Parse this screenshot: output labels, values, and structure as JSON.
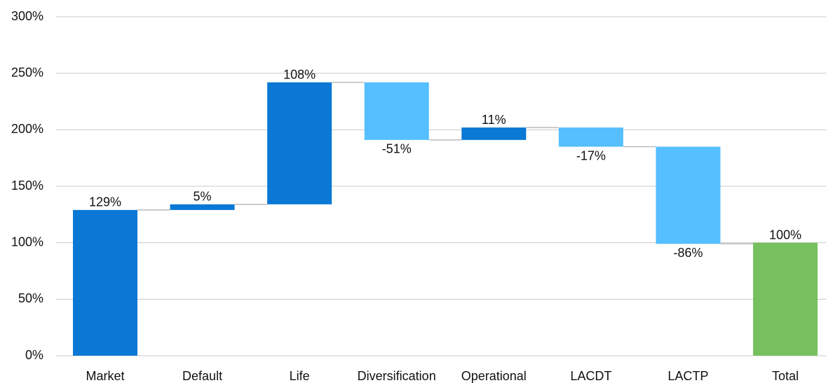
{
  "chart_data": {
    "type": "waterfall",
    "categories": [
      "Market",
      "Default",
      "Life",
      "Diversification",
      "Operational",
      "LACDT",
      "LACTP",
      "Total"
    ],
    "values": [
      129,
      5,
      108,
      -51,
      11,
      -17,
      -86,
      100
    ],
    "value_labels": [
      "129%",
      "5%",
      "108%",
      "-51%",
      "11%",
      "-17%",
      "-86%",
      "100%"
    ],
    "increase_color": "#0a78d4",
    "decrease_color": "#55bfff",
    "total_color": "#77c060",
    "ylim": [
      0,
      300
    ],
    "yticks": [
      {
        "value": 0,
        "label": "0%"
      },
      {
        "value": 50,
        "label": "50%"
      },
      {
        "value": 100,
        "label": "100%"
      },
      {
        "value": 150,
        "label": "150%"
      },
      {
        "value": 200,
        "label": "200%"
      },
      {
        "value": 250,
        "label": "250%"
      },
      {
        "value": 300,
        "label": "300%"
      }
    ],
    "grid": true
  }
}
